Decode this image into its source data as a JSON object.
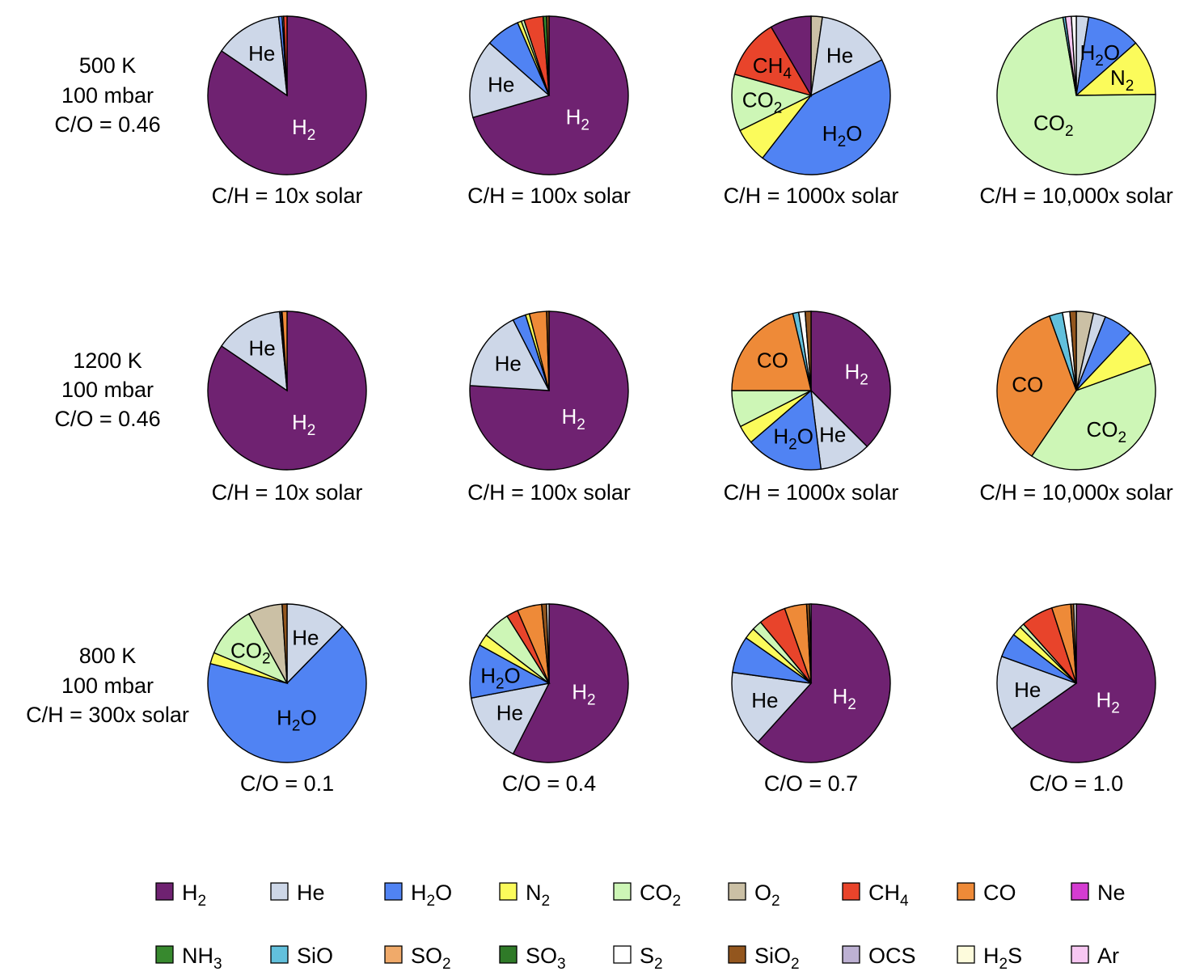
{
  "colors": {
    "H2": "#6f2271",
    "He": "#cdd7e8",
    "H2O": "#5083f3",
    "N2": "#fbfb5b",
    "CO2": "#cdf6b6",
    "O2": "#cbc0a5",
    "CH4": "#e8442b",
    "CO": "#ee8a38",
    "Ne": "#d43cd1",
    "NH3": "#37892e",
    "SiO": "#62c0dc",
    "SO2": "#f0aa6a",
    "SO3": "#2f7a28",
    "S2": "#ffffff",
    "SiO2": "#93561e",
    "OCS": "#bdb1d3",
    "H2S": "#fdfbdc",
    "Ar": "#f7c7f2"
  },
  "legend": [
    {
      "key": "H2",
      "base": "H",
      "sub": "2"
    },
    {
      "key": "He",
      "base": "He",
      "sub": ""
    },
    {
      "key": "H2O",
      "base": "H",
      "sub": "2",
      "post": "O"
    },
    {
      "key": "N2",
      "base": "N",
      "sub": "2"
    },
    {
      "key": "CO2",
      "base": "CO",
      "sub": "2"
    },
    {
      "key": "O2",
      "base": "O",
      "sub": "2"
    },
    {
      "key": "CH4",
      "base": "CH",
      "sub": "4"
    },
    {
      "key": "CO",
      "base": "CO",
      "sub": ""
    },
    {
      "key": "Ne",
      "base": "Ne",
      "sub": ""
    },
    {
      "key": "NH3",
      "base": "NH",
      "sub": "3"
    },
    {
      "key": "SiO",
      "base": "SiO",
      "sub": ""
    },
    {
      "key": "SO2",
      "base": "SO",
      "sub": "2"
    },
    {
      "key": "SO3",
      "base": "SO",
      "sub": "3"
    },
    {
      "key": "S2",
      "base": "S",
      "sub": "2"
    },
    {
      "key": "SiO2",
      "base": "SiO",
      "sub": "2"
    },
    {
      "key": "OCS",
      "base": "OCS",
      "sub": ""
    },
    {
      "key": "H2S",
      "base": "H",
      "sub": "2",
      "post": "S"
    },
    {
      "key": "Ar",
      "base": "Ar",
      "sub": ""
    }
  ],
  "chart_data": [
    {
      "type": "pie",
      "row_label": [
        "500 K",
        "100 mbar",
        "C/O = 0.46"
      ],
      "pies": [
        {
          "caption": "C/H = 10x solar",
          "slices": [
            {
              "species": "H2",
              "value": 84.5
            },
            {
              "species": "He",
              "value": 13.8
            },
            {
              "species": "H2O",
              "value": 0.7
            },
            {
              "species": "CO2",
              "value": 0.3
            },
            {
              "species": "CH4",
              "value": 0.7
            }
          ]
        },
        {
          "caption": "C/H = 100x solar",
          "slices": [
            {
              "species": "H2",
              "value": 70.5
            },
            {
              "species": "He",
              "value": 16.0
            },
            {
              "species": "H2O",
              "value": 7.0
            },
            {
              "species": "N2",
              "value": 0.8
            },
            {
              "species": "CO2",
              "value": 0.6
            },
            {
              "species": "CH4",
              "value": 3.9
            },
            {
              "species": "NH3",
              "value": 0.7
            },
            {
              "species": "SiO2",
              "value": 0.5
            }
          ]
        },
        {
          "caption": "C/H = 1000x solar",
          "slices": [
            {
              "species": "O2",
              "value": 2.3
            },
            {
              "species": "He",
              "value": 15.3
            },
            {
              "species": "H2O",
              "value": 42.9
            },
            {
              "species": "N2",
              "value": 7.2
            },
            {
              "species": "CO2",
              "value": 11.6
            },
            {
              "species": "CH4",
              "value": 12.3
            },
            {
              "species": "H2",
              "value": 8.4
            }
          ]
        },
        {
          "caption": "C/H = 10,000x solar",
          "slices": [
            {
              "species": "He",
              "value": 2.5
            },
            {
              "species": "H2O",
              "value": 11.0
            },
            {
              "species": "N2",
              "value": 11.3
            },
            {
              "species": "CO2",
              "value": 72.5
            },
            {
              "species": "SiO",
              "value": 0.5
            },
            {
              "species": "Ar",
              "value": 1.2
            },
            {
              "species": "S2",
              "value": 1.0
            }
          ]
        }
      ]
    },
    {
      "type": "pie",
      "row_label": [
        "1200 K",
        "100 mbar",
        "C/O = 0.46"
      ],
      "pies": [
        {
          "caption": "C/H = 10x solar",
          "slices": [
            {
              "species": "H2",
              "value": 84.5
            },
            {
              "species": "He",
              "value": 14.0
            },
            {
              "species": "H2O",
              "value": 0.3
            },
            {
              "species": "SiO2",
              "value": 0.2
            },
            {
              "species": "CO",
              "value": 1.0
            }
          ]
        },
        {
          "caption": "C/H = 100x solar",
          "slices": [
            {
              "species": "H2",
              "value": 76.0
            },
            {
              "species": "He",
              "value": 16.5
            },
            {
              "species": "H2O",
              "value": 2.7
            },
            {
              "species": "N2",
              "value": 0.8
            },
            {
              "species": "CO",
              "value": 3.5
            },
            {
              "species": "SiO2",
              "value": 0.5
            }
          ]
        },
        {
          "caption": "C/H = 1000x solar",
          "slices": [
            {
              "species": "H2",
              "value": 37.5
            },
            {
              "species": "He",
              "value": 10.5
            },
            {
              "species": "H2O",
              "value": 15.7
            },
            {
              "species": "N2",
              "value": 3.8
            },
            {
              "species": "CO2",
              "value": 7.5
            },
            {
              "species": "CO",
              "value": 21.3
            },
            {
              "species": "SiO",
              "value": 1.2
            },
            {
              "species": "S2",
              "value": 1.3
            },
            {
              "species": "SiO2",
              "value": 1.2
            }
          ]
        },
        {
          "caption": "C/H = 10,000x solar",
          "slices": [
            {
              "species": "O2",
              "value": 3.5
            },
            {
              "species": "He",
              "value": 2.5
            },
            {
              "species": "H2O",
              "value": 6.0
            },
            {
              "species": "N2",
              "value": 7.5
            },
            {
              "species": "CO2",
              "value": 40.0
            },
            {
              "species": "CO",
              "value": 35.0
            },
            {
              "species": "SiO",
              "value": 2.7
            },
            {
              "species": "S2",
              "value": 1.5
            },
            {
              "species": "SiO2",
              "value": 1.3
            }
          ]
        }
      ]
    },
    {
      "type": "pie",
      "row_label": [
        "800 K",
        "100 mbar",
        "C/H = 300x solar"
      ],
      "pies": [
        {
          "caption": "C/O = 0.1",
          "slices": [
            {
              "species": "He",
              "value": 12.3
            },
            {
              "species": "H2O",
              "value": 66.7
            },
            {
              "species": "N2",
              "value": 2.3
            },
            {
              "species": "CO2",
              "value": 10.7
            },
            {
              "species": "O2",
              "value": 7.0
            },
            {
              "species": "SiO2",
              "value": 1.0
            }
          ]
        },
        {
          "caption": "C/O = 0.4",
          "slices": [
            {
              "species": "H2",
              "value": 57.5
            },
            {
              "species": "He",
              "value": 14.5
            },
            {
              "species": "H2O",
              "value": 11.0
            },
            {
              "species": "N2",
              "value": 2.4
            },
            {
              "species": "CO2",
              "value": 5.7
            },
            {
              "species": "CH4",
              "value": 2.4
            },
            {
              "species": "CO",
              "value": 5.0
            },
            {
              "species": "SiO2",
              "value": 1.0
            },
            {
              "species": "S2",
              "value": 0.5
            }
          ]
        },
        {
          "caption": "C/O = 0.7",
          "slices": [
            {
              "species": "H2",
              "value": 61.7
            },
            {
              "species": "He",
              "value": 15.5
            },
            {
              "species": "H2O",
              "value": 7.5
            },
            {
              "species": "N2",
              "value": 2.3
            },
            {
              "species": "CO2",
              "value": 2.0
            },
            {
              "species": "CH4",
              "value": 5.6
            },
            {
              "species": "CO",
              "value": 4.5
            },
            {
              "species": "SiO2",
              "value": 0.6
            },
            {
              "species": "S2",
              "value": 0.3
            }
          ]
        },
        {
          "caption": "C/O = 1.0",
          "slices": [
            {
              "species": "H2",
              "value": 65.2
            },
            {
              "species": "He",
              "value": 15.3
            },
            {
              "species": "H2O",
              "value": 5.0
            },
            {
              "species": "N2",
              "value": 2.0
            },
            {
              "species": "CO2",
              "value": 0.9
            },
            {
              "species": "CH4",
              "value": 6.6
            },
            {
              "species": "CO",
              "value": 3.9
            },
            {
              "species": "SiO2",
              "value": 0.6
            },
            {
              "species": "S2",
              "value": 0.5
            }
          ]
        }
      ]
    }
  ]
}
